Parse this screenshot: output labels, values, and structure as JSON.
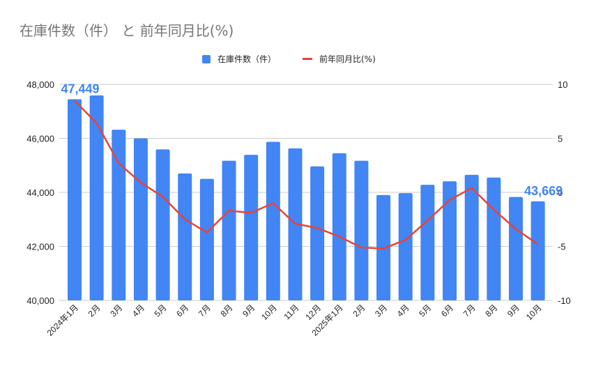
{
  "title": "在庫件数（件） と 前年同月比(%)",
  "colors": {
    "bar": "#4285F4",
    "line": "#EA4335",
    "grid": "#CCCCCC",
    "axis_text": "#222222",
    "title": "#757575"
  },
  "legend": [
    {
      "label": "在庫件数（件）",
      "type": "bar"
    },
    {
      "label": "前年同月比(%)",
      "type": "line"
    }
  ],
  "chart_data": {
    "type": "bar",
    "combo": true,
    "title": "在庫件数（件） と 前年同月比(%)",
    "xlabel": "",
    "ylabel": "",
    "legend_position": "top",
    "grid": true,
    "categories": [
      "2024年1月",
      "2月",
      "3月",
      "4月",
      "5月",
      "6月",
      "7月",
      "8月",
      "9月",
      "10月",
      "11月",
      "12月",
      "2025年1月",
      "2月",
      "3月",
      "4月",
      "5月",
      "6月",
      "7月",
      "8月",
      "9月",
      "10月"
    ],
    "series": [
      {
        "name": "在庫件数（件）",
        "type": "bar",
        "axis": "left",
        "values": [
          47449,
          47590,
          46320,
          46000,
          45590,
          44700,
          44500,
          45170,
          45390,
          45870,
          45630,
          44960,
          45450,
          45170,
          43900,
          43970,
          44280,
          44410,
          44650,
          44550,
          43830,
          43669
        ]
      },
      {
        "name": "前年同月比(%)",
        "type": "line",
        "axis": "right",
        "values": [
          8.5,
          6.4,
          2.7,
          0.9,
          -0.4,
          -2.5,
          -3.7,
          -1.7,
          -1.9,
          -1.0,
          -2.9,
          -3.3,
          -4.1,
          -5.1,
          -5.2,
          -4.4,
          -2.6,
          -0.7,
          0.4,
          -1.6,
          -3.4,
          -4.8
        ]
      }
    ],
    "left_axis": {
      "ylim": [
        40000,
        48000
      ],
      "ticks": [
        "40,000",
        "42,000",
        "44,000",
        "46,000",
        "48,000"
      ]
    },
    "right_axis": {
      "ylim": [
        -10,
        10
      ],
      "ticks": [
        "-10",
        "-5",
        "0",
        "5",
        "10"
      ]
    },
    "annotations": [
      {
        "index": 0,
        "text": "47,449"
      },
      {
        "index": 21,
        "text": "43,669"
      }
    ]
  }
}
